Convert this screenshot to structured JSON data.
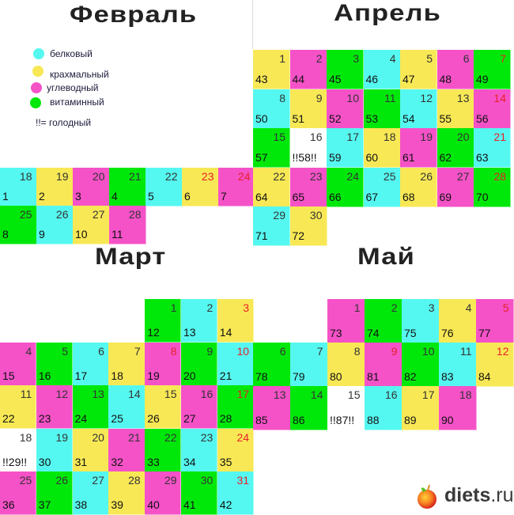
{
  "colors": {
    "c": "#55f8f0",
    "y": "#f8e855",
    "m": "#f552c8",
    "g": "#00e80a",
    "w": "#ffffff"
  },
  "legend": {
    "items": [
      {
        "type": "c",
        "label": "белковый"
      },
      {
        "type": "y",
        "label": "крахмальный"
      },
      {
        "type": "m",
        "label": "углеводный"
      },
      {
        "type": "g",
        "label": "витаминный"
      }
    ],
    "hungry_label": "!!= голодный"
  },
  "months": {
    "feb": {
      "title": "Февраль",
      "cells": [
        [
          "18",
          "1",
          "c",
          false
        ],
        [
          "19",
          "2",
          "y",
          false
        ],
        [
          "20",
          "3",
          "m",
          false
        ],
        [
          "21",
          "4",
          "g",
          false
        ],
        [
          "22",
          "5",
          "c",
          false
        ],
        [
          "23",
          "6",
          "y",
          true
        ],
        [
          "24",
          "7",
          "m",
          true
        ],
        [
          "25",
          "8",
          "g",
          false
        ],
        [
          "26",
          "9",
          "c",
          false
        ],
        [
          "27",
          "10",
          "y",
          false
        ],
        [
          "28",
          "11",
          "m",
          false
        ]
      ]
    },
    "apr": {
      "title": "Апрель",
      "cells": [
        [
          "1",
          "43",
          "y",
          false
        ],
        [
          "2",
          "44",
          "m",
          false
        ],
        [
          "3",
          "45",
          "g",
          false
        ],
        [
          "4",
          "46",
          "c",
          false
        ],
        [
          "5",
          "47",
          "y",
          false
        ],
        [
          "6",
          "48",
          "m",
          false
        ],
        [
          "7",
          "49",
          "g",
          true
        ],
        [
          "8",
          "50",
          "c",
          false
        ],
        [
          "9",
          "51",
          "y",
          false
        ],
        [
          "10",
          "52",
          "m",
          false
        ],
        [
          "11",
          "53",
          "g",
          false
        ],
        [
          "12",
          "54",
          "c",
          false
        ],
        [
          "13",
          "55",
          "y",
          false
        ],
        [
          "14",
          "56",
          "m",
          true
        ],
        [
          "15",
          "57",
          "g",
          false
        ],
        [
          "16",
          "!!58!!",
          "w",
          false
        ],
        [
          "17",
          "59",
          "c",
          false
        ],
        [
          "18",
          "60",
          "y",
          false
        ],
        [
          "19",
          "61",
          "m",
          false
        ],
        [
          "20",
          "62",
          "g",
          false
        ],
        [
          "21",
          "63",
          "c",
          true
        ],
        [
          "22",
          "64",
          "y",
          false
        ],
        [
          "23",
          "65",
          "m",
          false
        ],
        [
          "24",
          "66",
          "g",
          false
        ],
        [
          "25",
          "67",
          "c",
          false
        ],
        [
          "26",
          "68",
          "y",
          false
        ],
        [
          "27",
          "69",
          "m",
          false
        ],
        [
          "28",
          "70",
          "g",
          true
        ],
        [
          "29",
          "71",
          "c",
          false
        ],
        [
          "30",
          "72",
          "y",
          false
        ]
      ]
    },
    "mar": {
      "title": "Март",
      "cells": [
        [
          "1",
          "12",
          "g",
          false
        ],
        [
          "2",
          "13",
          "c",
          false
        ],
        [
          "3",
          "14",
          "y",
          true
        ],
        [
          "4",
          "15",
          "m",
          false
        ],
        [
          "5",
          "16",
          "g",
          false
        ],
        [
          "6",
          "17",
          "c",
          false
        ],
        [
          "7",
          "18",
          "y",
          false
        ],
        [
          "8",
          "19",
          "m",
          true
        ],
        [
          "9",
          "20",
          "g",
          false
        ],
        [
          "10",
          "21",
          "c",
          true
        ],
        [
          "11",
          "22",
          "y",
          false
        ],
        [
          "12",
          "23",
          "m",
          false
        ],
        [
          "13",
          "24",
          "g",
          false
        ],
        [
          "14",
          "25",
          "c",
          false
        ],
        [
          "15",
          "26",
          "y",
          false
        ],
        [
          "16",
          "27",
          "m",
          false
        ],
        [
          "17",
          "28",
          "g",
          true
        ],
        [
          "18",
          "!!29!!",
          "w",
          false
        ],
        [
          "19",
          "30",
          "c",
          false
        ],
        [
          "20",
          "31",
          "y",
          false
        ],
        [
          "21",
          "32",
          "m",
          false
        ],
        [
          "22",
          "33",
          "g",
          false
        ],
        [
          "23",
          "34",
          "c",
          false
        ],
        [
          "24",
          "35",
          "y",
          true
        ],
        [
          "25",
          "36",
          "m",
          false
        ],
        [
          "26",
          "37",
          "g",
          false
        ],
        [
          "27",
          "38",
          "c",
          false
        ],
        [
          "28",
          "39",
          "y",
          false
        ],
        [
          "29",
          "40",
          "m",
          false
        ],
        [
          "30",
          "41",
          "g",
          false
        ],
        [
          "31",
          "42",
          "c",
          true
        ]
      ]
    },
    "may": {
      "title": "Май",
      "cells": [
        [
          "1",
          "73",
          "m",
          false
        ],
        [
          "2",
          "74",
          "g",
          false
        ],
        [
          "3",
          "75",
          "c",
          false
        ],
        [
          "4",
          "76",
          "y",
          false
        ],
        [
          "5",
          "77",
          "m",
          true
        ],
        [
          "6",
          "78",
          "g",
          false
        ],
        [
          "7",
          "79",
          "c",
          false
        ],
        [
          "8",
          "80",
          "y",
          false
        ],
        [
          "9",
          "81",
          "m",
          true
        ],
        [
          "10",
          "82",
          "g",
          false
        ],
        [
          "11",
          "83",
          "c",
          false
        ],
        [
          "12",
          "84",
          "y",
          true
        ],
        [
          "13",
          "85",
          "m",
          false
        ],
        [
          "14",
          "86",
          "g",
          false
        ],
        [
          "15",
          "!!87!!",
          "w",
          false
        ],
        [
          "16",
          "88",
          "c",
          false
        ],
        [
          "17",
          "89",
          "y",
          false
        ],
        [
          "18",
          "90",
          "m",
          false
        ]
      ]
    }
  },
  "logo": {
    "name": "diets",
    "suffix": ".ru"
  }
}
